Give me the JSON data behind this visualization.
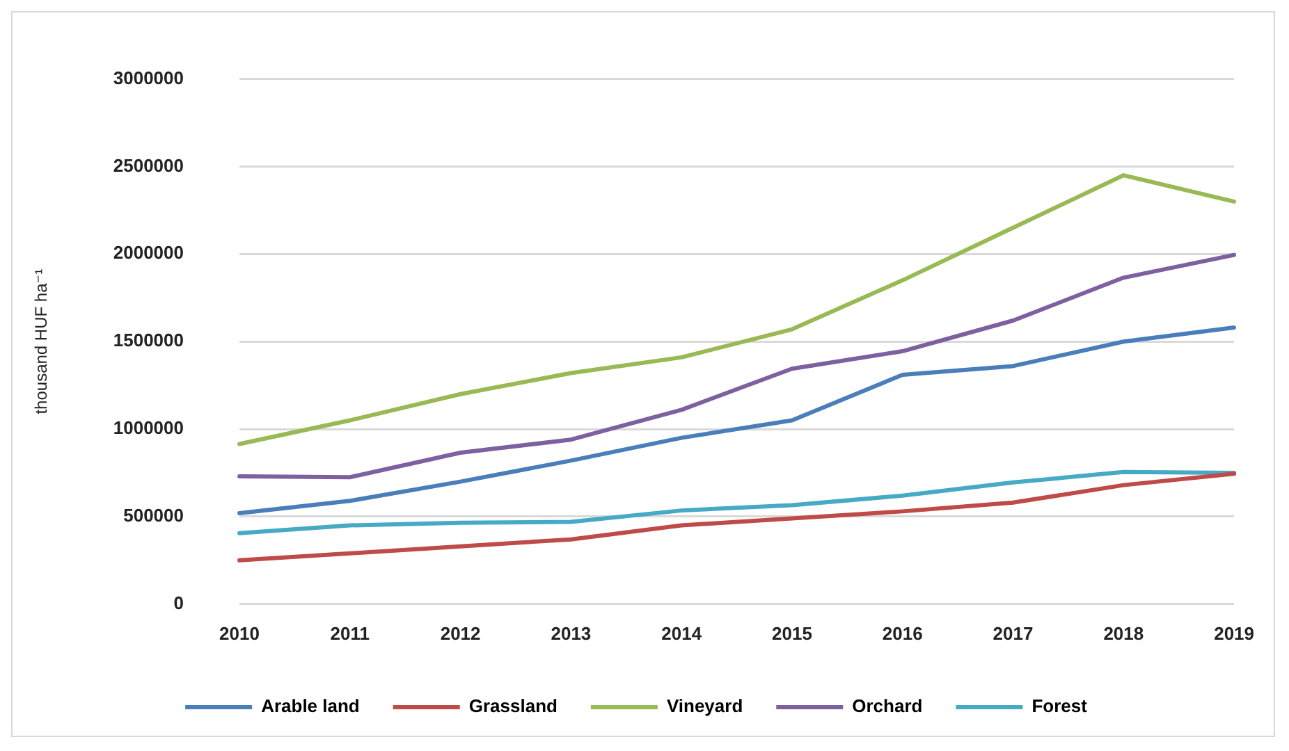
{
  "chart_data": {
    "type": "line",
    "ylabel": "thousand HUF ha⁻¹",
    "categories": [
      "2010",
      "2011",
      "2012",
      "2013",
      "2014",
      "2015",
      "2016",
      "2017",
      "2018",
      "2019"
    ],
    "series": [
      {
        "name": "Arable land",
        "color": "#4a7ebb",
        "values": [
          520000,
          590000,
          700000,
          820000,
          950000,
          1050000,
          1310000,
          1360000,
          1500000,
          1580000
        ]
      },
      {
        "name": "Grassland",
        "color": "#be4b48",
        "values": [
          250000,
          290000,
          330000,
          370000,
          450000,
          490000,
          530000,
          580000,
          680000,
          745000
        ]
      },
      {
        "name": "Vineyard",
        "color": "#98b954",
        "values": [
          915000,
          1050000,
          1200000,
          1320000,
          1410000,
          1570000,
          1850000,
          2150000,
          2450000,
          2300000
        ]
      },
      {
        "name": "Orchard",
        "color": "#7d60a0",
        "values": [
          730000,
          725000,
          865000,
          940000,
          1110000,
          1345000,
          1445000,
          1620000,
          1865000,
          1995000
        ]
      },
      {
        "name": "Forest",
        "color": "#46aac5",
        "values": [
          405000,
          450000,
          465000,
          470000,
          535000,
          565000,
          620000,
          695000,
          755000,
          750000
        ]
      }
    ],
    "ylim": [
      0,
      3000000
    ],
    "yticks": [
      0,
      500000,
      1000000,
      1500000,
      2000000,
      2500000,
      3000000
    ],
    "grid": "y",
    "legend": "bottom",
    "marker": "none",
    "line_style": "solid"
  }
}
